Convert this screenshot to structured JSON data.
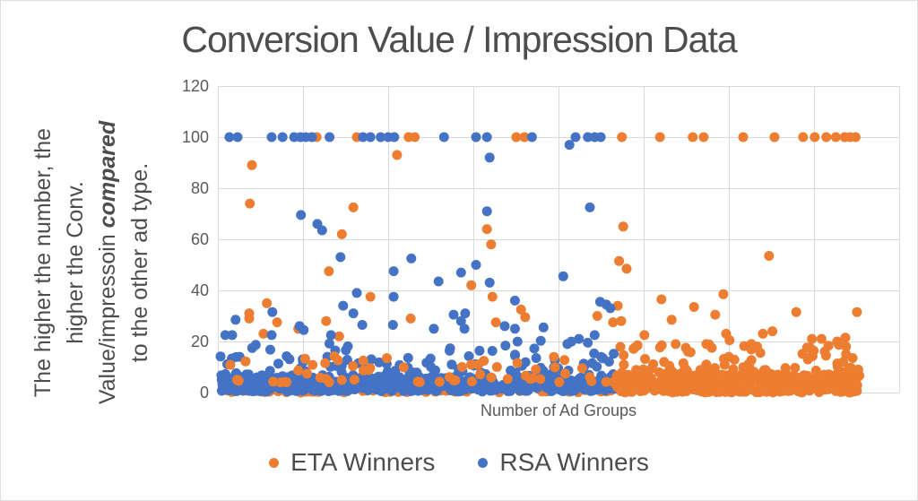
{
  "title": "Conversion Value / Impression Data",
  "y_axis_note": {
    "line1": "The higher the number, the",
    "line2": "higher the Conv.",
    "line3_regular": "Value/impressoin",
    "line3_emphasis": "compared",
    "line4": "to the other ad type."
  },
  "legend": [
    {
      "label": "ETA Winners",
      "color": "#ED7D31"
    },
    {
      "label": "RSA Winners",
      "color": "#4472C4"
    }
  ],
  "chart_data": {
    "type": "scatter",
    "title": "Conversion Value / Impression Data",
    "xlabel": "Number of Ad Groups",
    "ylabel_note": "The higher the number, the higher the Conv. Value/impressoin compared to the other ad type.",
    "ylim": [
      0,
      120
    ],
    "yticks": [
      0,
      20,
      40,
      60,
      80,
      100,
      120
    ],
    "x_divisions": 8,
    "x_encoding": "fraction of x-axis width (axis has no numeric tick labels)",
    "grid": true,
    "grid_color": "#d9d9d9",
    "legend_position": "bottom",
    "marker_radius": 5.5,
    "random_seed": 20,
    "series": [
      {
        "name": "ETA Winners",
        "color": "#ED7D31",
        "points": [
          [
            0.145,
            100
          ],
          [
            0.204,
            100
          ],
          [
            0.28,
            100
          ],
          [
            0.289,
            100
          ],
          [
            0.438,
            100
          ],
          [
            0.45,
            100
          ],
          [
            0.593,
            100
          ],
          [
            0.649,
            100
          ],
          [
            0.697,
            100
          ],
          [
            0.713,
            100
          ],
          [
            0.771,
            100
          ],
          [
            0.817,
            100
          ],
          [
            0.859,
            100
          ],
          [
            0.876,
            100
          ],
          [
            0.893,
            100
          ],
          [
            0.907,
            100
          ],
          [
            0.92,
            100
          ],
          [
            0.928,
            100
          ],
          [
            0.936,
            100
          ],
          [
            0.263,
            93
          ],
          [
            0.05,
            89
          ],
          [
            0.047,
            74
          ],
          [
            0.199,
            72.5
          ],
          [
            0.595,
            65
          ],
          [
            0.395,
            64
          ],
          [
            0.182,
            62
          ],
          [
            0.401,
            58
          ],
          [
            0.809,
            53.5
          ],
          [
            0.589,
            51.5
          ],
          [
            0.6,
            48.5
          ],
          [
            0.163,
            47.5
          ],
          [
            0.372,
            42
          ],
          [
            0.742,
            38.5
          ],
          [
            0.224,
            37.5
          ],
          [
            0.403,
            37.5
          ],
          [
            0.651,
            36.5
          ],
          [
            0.072,
            35
          ],
          [
            0.587,
            34
          ],
          [
            0.699,
            33.5
          ],
          [
            0.445,
            32.5
          ],
          [
            0.849,
            31.5
          ],
          [
            0.938,
            31.5
          ],
          [
            0.046,
            31
          ],
          [
            0.73,
            30.5
          ],
          [
            0.557,
            30
          ],
          [
            0.451,
            29.5
          ],
          [
            0.283,
            29
          ],
          [
            0.046,
            29
          ],
          [
            0.666,
            28.5
          ],
          [
            0.592,
            28
          ],
          [
            0.159,
            28
          ],
          [
            0.087,
            27.5
          ],
          [
            0.58,
            27.5
          ],
          [
            0.408,
            27.5
          ],
          [
            0.118,
            25
          ],
          [
            0.814,
            24
          ],
          [
            0.067,
            23
          ],
          [
            0.746,
            23
          ],
          [
            0.8,
            23
          ],
          [
            0.626,
            22.5
          ],
          [
            0.178,
            22
          ],
          [
            0.921,
            21.5
          ],
          [
            0.872,
            21
          ],
          [
            0.886,
            21
          ],
          [
            0.751,
            20.5
          ],
          [
            0.909,
            20
          ],
          [
            0.717,
            19
          ],
          [
            0.783,
            19
          ],
          [
            0.672,
            19
          ],
          [
            0.616,
            18.5
          ],
          [
            0.922,
            18
          ],
          [
            0.725,
            17.5
          ],
          [
            0.784,
            17.5
          ],
          [
            0.69,
            16
          ],
          [
            0.922,
            15
          ],
          [
            0.75,
            14
          ],
          [
            0.87,
            14
          ],
          [
            0.918,
            12
          ],
          [
            0.655,
            12
          ],
          [
            0.91,
            10
          ],
          [
            0.94,
            9
          ]
        ]
      },
      {
        "name": "RSA Winners",
        "color": "#4472C4",
        "points": [
          [
            0.017,
            100
          ],
          [
            0.029,
            100
          ],
          [
            0.079,
            100
          ],
          [
            0.095,
            100
          ],
          [
            0.112,
            100
          ],
          [
            0.121,
            100
          ],
          [
            0.129,
            100
          ],
          [
            0.138,
            100
          ],
          [
            0.164,
            100
          ],
          [
            0.213,
            100
          ],
          [
            0.224,
            100
          ],
          [
            0.239,
            100
          ],
          [
            0.25,
            100
          ],
          [
            0.259,
            100
          ],
          [
            0.332,
            100
          ],
          [
            0.379,
            100
          ],
          [
            0.395,
            100
          ],
          [
            0.461,
            100
          ],
          [
            0.525,
            100
          ],
          [
            0.543,
            100
          ],
          [
            0.553,
            100
          ],
          [
            0.562,
            100
          ],
          [
            0.516,
            97
          ],
          [
            0.399,
            92
          ],
          [
            0.546,
            72.5
          ],
          [
            0.395,
            71
          ],
          [
            0.122,
            69.5
          ],
          [
            0.146,
            66
          ],
          [
            0.153,
            63.5
          ],
          [
            0.18,
            53
          ],
          [
            0.284,
            52.5
          ],
          [
            0.379,
            50
          ],
          [
            0.258,
            47.5
          ],
          [
            0.357,
            47
          ],
          [
            0.507,
            45.5
          ],
          [
            0.324,
            43.5
          ],
          [
            0.399,
            43
          ],
          [
            0.204,
            39
          ],
          [
            0.258,
            37.5
          ],
          [
            0.436,
            36
          ],
          [
            0.561,
            35.5
          ],
          [
            0.57,
            34.5
          ],
          [
            0.184,
            34
          ],
          [
            0.576,
            33
          ],
          [
            0.08,
            31.5
          ],
          [
            0.199,
            31
          ],
          [
            0.363,
            31
          ],
          [
            0.346,
            30.5
          ],
          [
            0.026,
            28.5
          ],
          [
            0.357,
            28
          ],
          [
            0.257,
            26.5
          ],
          [
            0.212,
            26.5
          ],
          [
            0.12,
            26
          ],
          [
            0.421,
            26
          ],
          [
            0.478,
            25.5
          ],
          [
            0.436,
            25
          ],
          [
            0.362,
            25
          ],
          [
            0.317,
            25
          ],
          [
            0.126,
            24.5
          ],
          [
            0.011,
            22.5
          ],
          [
            0.021,
            22.5
          ],
          [
            0.079,
            22.5
          ],
          [
            0.166,
            22.5
          ],
          [
            0.553,
            22.5
          ],
          [
            0.53,
            21
          ],
          [
            0.543,
            19.5
          ],
          [
            0.513,
            19
          ]
        ]
      }
    ],
    "dense_bands": [
      {
        "series": "ETA Winners",
        "x": [
          0.003,
          0.588
        ],
        "y": [
          0,
          1.5
        ],
        "count": 90,
        "taper": false
      },
      {
        "series": "RSA Winners",
        "x": [
          0.003,
          0.59
        ],
        "y": [
          0.4,
          6
        ],
        "count": 520,
        "taper": false
      },
      {
        "series": "RSA Winners",
        "x": [
          0.003,
          0.59
        ],
        "y": [
          6,
          15.5
        ],
        "count": 115,
        "taper": true
      },
      {
        "series": "RSA Winners",
        "x": [
          0.01,
          0.58
        ],
        "y": [
          15.5,
          20.5
        ],
        "count": 16,
        "taper": false
      },
      {
        "series": "ETA Winners",
        "x": [
          0.585,
          0.942
        ],
        "y": [
          0,
          7
        ],
        "count": 430,
        "taper": false
      },
      {
        "series": "ETA Winners",
        "x": [
          0.585,
          0.942
        ],
        "y": [
          7,
          19
        ],
        "count": 95,
        "taper": true
      },
      {
        "series": "ETA Winners",
        "x": [
          0.01,
          0.588
        ],
        "y": [
          4,
          14.5
        ],
        "count": 60,
        "taper": true
      }
    ]
  }
}
